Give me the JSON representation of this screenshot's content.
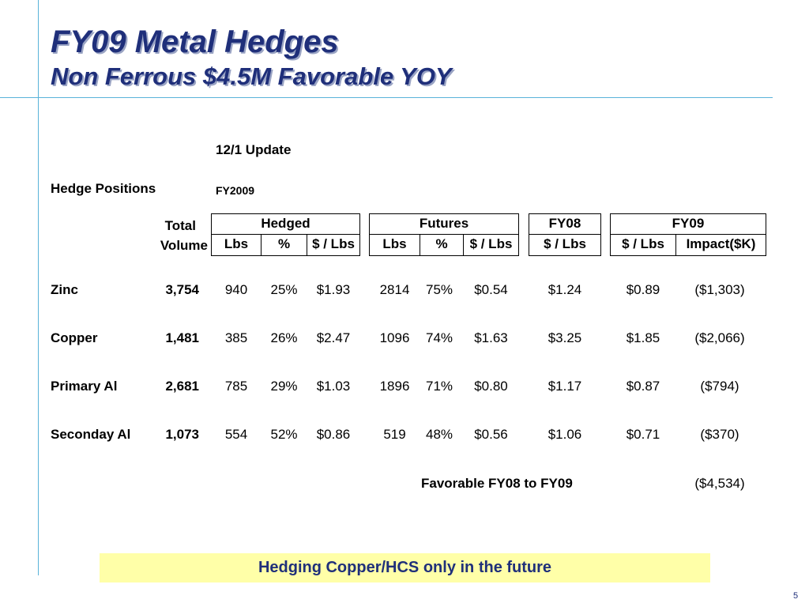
{
  "slide": {
    "title": "FY09 Metal Hedges",
    "subtitle": "Non Ferrous $4.5M Favorable YOY",
    "update_label": "12/1 Update",
    "hedge_positions_label": "Hedge Positions",
    "year_label": "FY2009",
    "page_number": "5"
  },
  "table": {
    "total_label": "Total",
    "volume_label": "Volume",
    "groups": {
      "hedged": "Hedged",
      "futures": "Futures",
      "fy08": "FY08",
      "fy09": "FY09"
    },
    "subheaders": {
      "hedged_lbs": "Lbs",
      "hedged_pct": "%",
      "hedged_price": "$ / Lbs",
      "futures_lbs": "Lbs",
      "futures_pct": "%",
      "futures_price": "$ / Lbs",
      "fy08_price": "$ / Lbs",
      "fy09_price": "$ / Lbs",
      "fy09_impact": "Impact($K)"
    },
    "rows": [
      {
        "metal": "Zinc",
        "total": "3,754",
        "h_lbs": "940",
        "h_pct": "25%",
        "h_price": "$1.93",
        "f_lbs": "2814",
        "f_pct": "75%",
        "f_price": "$0.54",
        "fy08": "$1.24",
        "fy09": "$0.89",
        "impact": "($1,303)"
      },
      {
        "metal": "Copper",
        "total": "1,481",
        "h_lbs": "385",
        "h_pct": "26%",
        "h_price": "$2.47",
        "f_lbs": "1096",
        "f_pct": "74%",
        "f_price": "$1.63",
        "fy08": "$3.25",
        "fy09": "$1.85",
        "impact": "($2,066)"
      },
      {
        "metal": "Primary Al",
        "total": "2,681",
        "h_lbs": "785",
        "h_pct": "29%",
        "h_price": "$1.03",
        "f_lbs": "1896",
        "f_pct": "71%",
        "f_price": "$0.80",
        "fy08": "$1.17",
        "fy09": "$0.87",
        "impact": "($794)"
      },
      {
        "metal": "Seconday Al",
        "total": "1,073",
        "h_lbs": "554",
        "h_pct": "52%",
        "h_price": "$0.86",
        "f_lbs": "519",
        "f_pct": "48%",
        "f_price": "$0.56",
        "fy08": "$1.06",
        "fy09": "$0.71",
        "impact": "($370)"
      }
    ],
    "favorable_label": "Favorable FY08 to FY09",
    "favorable_total": "($4,534)"
  },
  "banner": {
    "text": "Hedging Copper/HCS only in the future"
  },
  "colors": {
    "title": "#1f2f7a",
    "rule_lines": "#59b3d9",
    "banner_background": "#ffffa8"
  }
}
